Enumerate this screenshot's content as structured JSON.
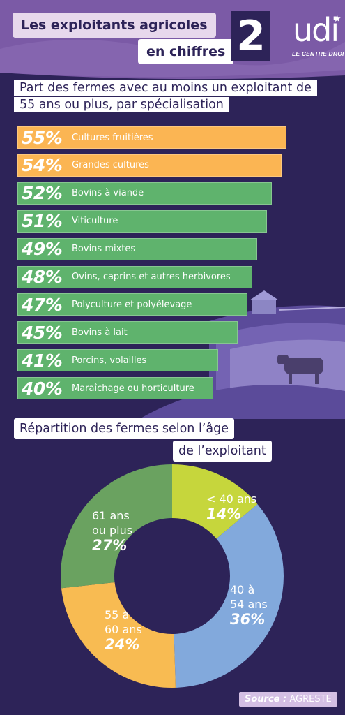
{
  "header": {
    "title_line1": "Les exploitants agricoles",
    "title_line2": "en chiffres",
    "number": "2",
    "logo": "udi",
    "logo_tagline": "LE CENTRE DROIT"
  },
  "colors": {
    "background": "#2d2358",
    "header_band": "#7b5aa6",
    "orange": "#fbb553",
    "green": "#5fb36d",
    "lime": "#c6d63c",
    "blue": "#82a9dc",
    "dark_green": "#6aa260",
    "yellow": "#f8bb52"
  },
  "chart_data": [
    {
      "type": "bar",
      "title": "Part des fermes avec au moins un exploitant de 55 ans ou plus, par spécialisation",
      "bars": [
        {
          "percent_label": "55%",
          "value": 55,
          "category": "Cultures fruitières",
          "color": "#fbb553"
        },
        {
          "percent_label": "54%",
          "value": 54,
          "category": "Grandes cultures",
          "color": "#fbb553"
        },
        {
          "percent_label": "52%",
          "value": 52,
          "category": "Bovins à viande",
          "color": "#5fb36d"
        },
        {
          "percent_label": "51%",
          "value": 51,
          "category": "Viticulture",
          "color": "#5fb36d"
        },
        {
          "percent_label": "49%",
          "value": 49,
          "category": "Bovins mixtes",
          "color": "#5fb36d"
        },
        {
          "percent_label": "48%",
          "value": 48,
          "category": "Ovins, caprins et autres herbivores",
          "color": "#5fb36d"
        },
        {
          "percent_label": "47%",
          "value": 47,
          "category": "Polyculture et polyélevage",
          "color": "#5fb36d"
        },
        {
          "percent_label": "45%",
          "value": 45,
          "category": "Bovins à lait",
          "color": "#5fb36d"
        },
        {
          "percent_label": "41%",
          "value": 41,
          "category": "Porcins, volailles",
          "color": "#5fb36d"
        },
        {
          "percent_label": "40%",
          "value": 40,
          "category": "Maraîchage ou horticulture",
          "color": "#5fb36d"
        }
      ]
    },
    {
      "type": "pie",
      "title_line1": "Répartition des fermes selon l’âge",
      "title_line2": "de l’exploitant",
      "slices": [
        {
          "label_lines": [
            "< 40 ans"
          ],
          "percent_label": "14%",
          "value": 14,
          "color": "#c6d63c"
        },
        {
          "label_lines": [
            "40 à",
            "54 ans"
          ],
          "percent_label": "36%",
          "value": 36,
          "color": "#82a9dc"
        },
        {
          "label_lines": [
            "55 à",
            "60 ans"
          ],
          "percent_label": "24%",
          "value": 24,
          "color": "#f8bb52"
        },
        {
          "label_lines": [
            "61 ans",
            "ou plus"
          ],
          "percent_label": "27%",
          "value": 27,
          "color": "#6aa260"
        }
      ]
    }
  ],
  "source": {
    "prefix": "Source :",
    "name": "AGRESTE"
  }
}
